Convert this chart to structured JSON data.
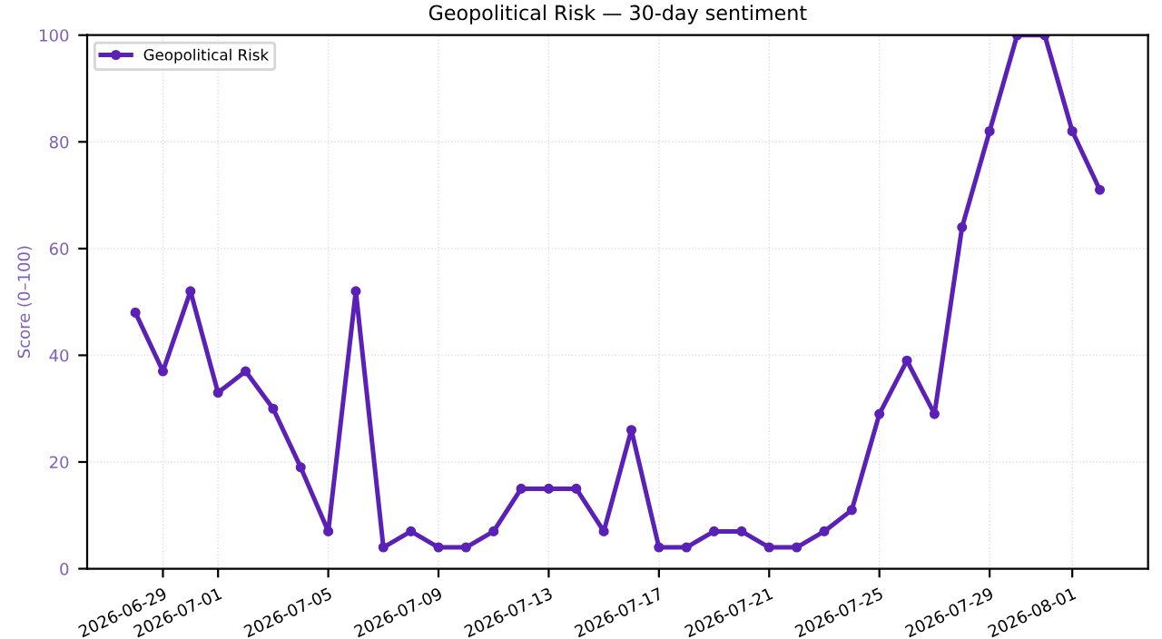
{
  "chart_data": {
    "type": "line",
    "title": "Geopolitical Risk — 30-day sentiment",
    "ylabel": "Score (0–100)",
    "x": [
      "2026-06-28",
      "2026-06-29",
      "2026-06-30",
      "2026-07-01",
      "2026-07-02",
      "2026-07-03",
      "2026-07-04",
      "2026-07-05",
      "2026-07-06",
      "2026-07-07",
      "2026-07-08",
      "2026-07-09",
      "2026-07-10",
      "2026-07-11",
      "2026-07-12",
      "2026-07-13",
      "2026-07-14",
      "2026-07-15",
      "2026-07-16",
      "2026-07-17",
      "2026-07-18",
      "2026-07-19",
      "2026-07-20",
      "2026-07-21",
      "2026-07-22",
      "2026-07-23",
      "2026-07-24",
      "2026-07-25",
      "2026-07-26",
      "2026-07-27",
      "2026-07-28",
      "2026-07-29",
      "2026-07-30",
      "2026-07-31",
      "2026-08-01",
      "2026-08-02"
    ],
    "series": [
      {
        "name": "Geopolitical Risk",
        "color": "#5b21b6",
        "values": [
          48,
          37,
          52,
          33,
          37,
          30,
          19,
          7,
          52,
          4,
          7,
          4,
          4,
          7,
          15,
          15,
          15,
          7,
          26,
          4,
          4,
          7,
          7,
          4,
          4,
          7,
          11,
          29,
          39,
          29,
          64,
          82,
          100,
          100,
          82,
          71
        ]
      }
    ],
    "xlim": [
      "2026-06-26T06:00",
      "2026-08-03T18:00"
    ],
    "xticks": [
      "2026-06-29",
      "2026-07-01",
      "2026-07-05",
      "2026-07-09",
      "2026-07-13",
      "2026-07-17",
      "2026-07-21",
      "2026-07-25",
      "2026-07-29",
      "2026-08-01"
    ],
    "ylim": [
      0,
      100
    ],
    "yticks": [
      0,
      20,
      40,
      60,
      80,
      100
    ],
    "grid": true,
    "legend": "top left",
    "marker": "circle",
    "line_style": "solid"
  }
}
